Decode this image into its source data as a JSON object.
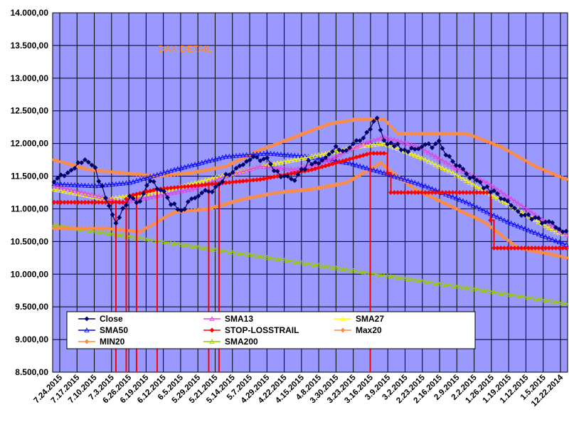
{
  "chart_data": {
    "type": "line",
    "title": "DAX-DETAIL",
    "xlabel": "",
    "ylabel": "",
    "ylim": [
      8500,
      14000
    ],
    "y_ticks": [
      8500,
      9000,
      9500,
      10000,
      10500,
      11000,
      11500,
      12000,
      12500,
      13000,
      13500,
      14000
    ],
    "y_tick_labels": [
      "8.500,00",
      "9.000,00",
      "9.500,00",
      "10.000,00",
      "10.500,00",
      "11.000,00",
      "11.500,00",
      "12.000,00",
      "12.500,00",
      "13.000,00",
      "13.500,00",
      "14.000,00"
    ],
    "x_tick_labels": [
      "7.24.2015",
      "7.17.2015",
      "7.10.2015",
      "7.3.2015",
      "6.26.2015",
      "6.19.2015",
      "6.12.2015",
      "6.5.2015",
      "5.29.2015",
      "5.21.2015",
      "5.14.2015",
      "5.7.2015",
      "4.29.2015",
      "4.22.2015",
      "4.15.2015",
      "4.8.2015",
      "3.30.2015",
      "3.23.2015",
      "3.16.2015",
      "3.9.2015",
      "3.2.2015",
      "2.23.2015",
      "2.16.2015",
      "2.9.2015",
      "2.2.2015",
      "1.26.2015",
      "1.19.2015",
      "1.12.2015",
      "1.5.2015",
      "12.22.2014"
    ],
    "x_order": "newest-left",
    "n_points": 150,
    "grid": true,
    "legend_position": "bottom-left",
    "series": [
      {
        "name": "Close",
        "color": "#000066",
        "marker": "diamond",
        "anchors": [
          [
            0,
            11400
          ],
          [
            5,
            11600
          ],
          [
            8,
            11750
          ],
          [
            12,
            11600
          ],
          [
            15,
            11200
          ],
          [
            18,
            10800
          ],
          [
            22,
            11150
          ],
          [
            25,
            11100
          ],
          [
            28,
            11450
          ],
          [
            31,
            11300
          ],
          [
            34,
            11100
          ],
          [
            37,
            10950
          ],
          [
            40,
            11150
          ],
          [
            44,
            11300
          ],
          [
            47,
            11300
          ],
          [
            50,
            11500
          ],
          [
            54,
            11650
          ],
          [
            58,
            11800
          ],
          [
            62,
            11750
          ],
          [
            66,
            11500
          ],
          [
            70,
            11450
          ],
          [
            74,
            11700
          ],
          [
            78,
            11700
          ],
          [
            82,
            11950
          ],
          [
            85,
            11900
          ],
          [
            89,
            12050
          ],
          [
            92,
            12250
          ],
          [
            94,
            12350
          ],
          [
            96,
            12050
          ],
          [
            100,
            11950
          ],
          [
            104,
            11900
          ],
          [
            108,
            11950
          ],
          [
            112,
            12000
          ],
          [
            116,
            11700
          ],
          [
            120,
            11550
          ],
          [
            125,
            11350
          ],
          [
            130,
            11200
          ],
          [
            135,
            10950
          ],
          [
            140,
            10850
          ],
          [
            145,
            10750
          ],
          [
            149,
            10650
          ]
        ]
      },
      {
        "name": "SMA13",
        "color": "#e040e0",
        "marker": "triangle",
        "anchors": [
          [
            0,
            11350
          ],
          [
            12,
            11200
          ],
          [
            20,
            11100
          ],
          [
            30,
            11200
          ],
          [
            40,
            11300
          ],
          [
            50,
            11500
          ],
          [
            60,
            11650
          ],
          [
            70,
            11600
          ],
          [
            80,
            11750
          ],
          [
            90,
            12000
          ],
          [
            96,
            12100
          ],
          [
            106,
            11950
          ],
          [
            116,
            11650
          ],
          [
            126,
            11400
          ],
          [
            136,
            11050
          ],
          [
            146,
            10700
          ],
          [
            149,
            10600
          ]
        ]
      },
      {
        "name": "SMA27",
        "color": "#ffff00",
        "marker": "triangle",
        "anchors": [
          [
            0,
            11300
          ],
          [
            15,
            11150
          ],
          [
            30,
            11250
          ],
          [
            45,
            11450
          ],
          [
            60,
            11650
          ],
          [
            75,
            11800
          ],
          [
            88,
            11950
          ],
          [
            96,
            12000
          ],
          [
            106,
            11800
          ],
          [
            116,
            11550
          ],
          [
            126,
            11250
          ],
          [
            136,
            10950
          ],
          [
            146,
            10650
          ],
          [
            149,
            10600
          ]
        ]
      },
      {
        "name": "SMA50",
        "color": "#0000ff",
        "marker": "triangle",
        "anchors": [
          [
            0,
            11380
          ],
          [
            12,
            11350
          ],
          [
            22,
            11400
          ],
          [
            35,
            11600
          ],
          [
            50,
            11800
          ],
          [
            62,
            11850
          ],
          [
            74,
            11800
          ],
          [
            86,
            11700
          ],
          [
            96,
            11550
          ],
          [
            108,
            11350
          ],
          [
            120,
            11100
          ],
          [
            132,
            10800
          ],
          [
            144,
            10550
          ],
          [
            149,
            10450
          ]
        ]
      },
      {
        "name": "STOP-LOSSTRAIL",
        "color": "#ff0000",
        "marker": "diamond",
        "anchors": [
          [
            0,
            11100
          ],
          [
            20,
            11100
          ],
          [
            22,
            11200
          ],
          [
            30,
            11300
          ],
          [
            40,
            11350
          ],
          [
            60,
            11450
          ],
          [
            75,
            11600
          ],
          [
            92,
            11850
          ],
          [
            96,
            11850
          ],
          [
            98,
            11250
          ],
          [
            126,
            11250
          ],
          [
            128,
            10400
          ],
          [
            149,
            10400
          ]
        ]
      },
      {
        "name": "Max20",
        "color": "#ff8c40",
        "marker": "diamond",
        "anchors": [
          [
            0,
            11750
          ],
          [
            10,
            11600
          ],
          [
            20,
            11550
          ],
          [
            30,
            11500
          ],
          [
            40,
            11550
          ],
          [
            50,
            11650
          ],
          [
            60,
            11900
          ],
          [
            70,
            12100
          ],
          [
            80,
            12300
          ],
          [
            88,
            12370
          ],
          [
            96,
            12370
          ],
          [
            100,
            12150
          ],
          [
            110,
            12150
          ],
          [
            120,
            12150
          ],
          [
            130,
            11950
          ],
          [
            140,
            11650
          ],
          [
            149,
            11450
          ]
        ]
      },
      {
        "name": "MIN20",
        "color": "#ff8c40",
        "marker": "diamond",
        "anchors": [
          [
            0,
            10700
          ],
          [
            15,
            10700
          ],
          [
            25,
            10650
          ],
          [
            35,
            10950
          ],
          [
            45,
            11000
          ],
          [
            55,
            11150
          ],
          [
            65,
            11250
          ],
          [
            75,
            11300
          ],
          [
            85,
            11400
          ],
          [
            95,
            11700
          ],
          [
            105,
            11300
          ],
          [
            115,
            11050
          ],
          [
            125,
            10800
          ],
          [
            135,
            10400
          ],
          [
            145,
            10300
          ],
          [
            149,
            10250
          ]
        ]
      },
      {
        "name": "SMA200",
        "color": "#99cc00",
        "marker": "triangle",
        "anchors": [
          [
            0,
            10750
          ],
          [
            25,
            10550
          ],
          [
            50,
            10350
          ],
          [
            75,
            10150
          ],
          [
            100,
            9950
          ],
          [
            125,
            9750
          ],
          [
            149,
            9550
          ]
        ]
      }
    ],
    "stop_drop_indices": [
      18,
      21,
      24,
      30,
      45,
      48,
      92
    ]
  }
}
